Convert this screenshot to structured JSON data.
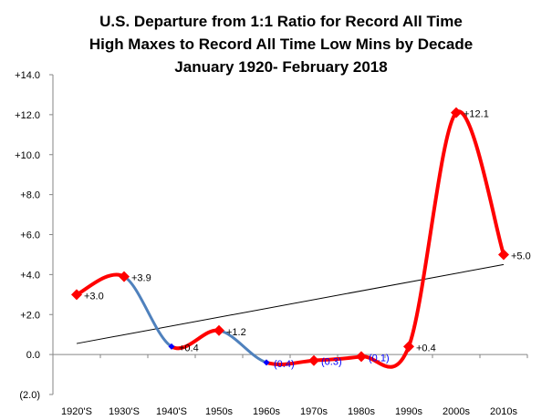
{
  "chart_data": {
    "type": "line",
    "title_lines": [
      "U.S. Departure  from 1:1 Ratio for Record All Time",
      "High Maxes to Record All Time Low Mins by Decade",
      "January  1920- February  2018"
    ],
    "xlabel": "",
    "ylabel": "",
    "categories": [
      "1920'S",
      "1930'S",
      "1940'S",
      "1950s",
      "1960s",
      "1970s",
      "1980s",
      "1990s",
      "2000s",
      "2010s"
    ],
    "values": [
      3.0,
      3.9,
      0.4,
      1.2,
      -0.4,
      -0.3,
      -0.1,
      0.4,
      12.1,
      5.0
    ],
    "point_labels": [
      "+3.0",
      "+3.9",
      "+0.4",
      "+1.2",
      "(0.4)",
      "(0.3)",
      "(0.1)",
      "+0.4",
      "+12.1",
      "+5.0"
    ],
    "point_colors": [
      "#ff0000",
      "#ff0000",
      "#0000ff",
      "#ff0000",
      "#0000ff",
      "#ff0000",
      "#ff0000",
      "#ff0000",
      "#ff0000",
      "#ff0000"
    ],
    "label_colors": [
      "#000000",
      "#000000",
      "#000000",
      "#000000",
      "#0000ff",
      "#0000ff",
      "#0000ff",
      "#000000",
      "#000000",
      "#000000"
    ],
    "y_ticks": [
      14,
      12,
      10,
      8,
      6,
      4,
      2,
      0,
      -2
    ],
    "y_tick_labels": [
      "+14.0",
      "+12.0",
      "+10.0",
      "+8.0",
      "+6.0",
      "+4.0",
      "+2.0",
      "0.0",
      "(2.0)"
    ],
    "y_tick_colors": [
      "#000000",
      "#000000",
      "#000000",
      "#000000",
      "#000000",
      "#000000",
      "#000000",
      "#000000",
      "#0000ff"
    ],
    "ylim": [
      -2,
      14
    ],
    "trendline": {
      "start": 0.55,
      "end": 4.5
    },
    "colors": {
      "positive": "#ff0000",
      "negative": "#4f81bd",
      "trend": "#000000"
    },
    "grid": false,
    "legend": "none"
  }
}
